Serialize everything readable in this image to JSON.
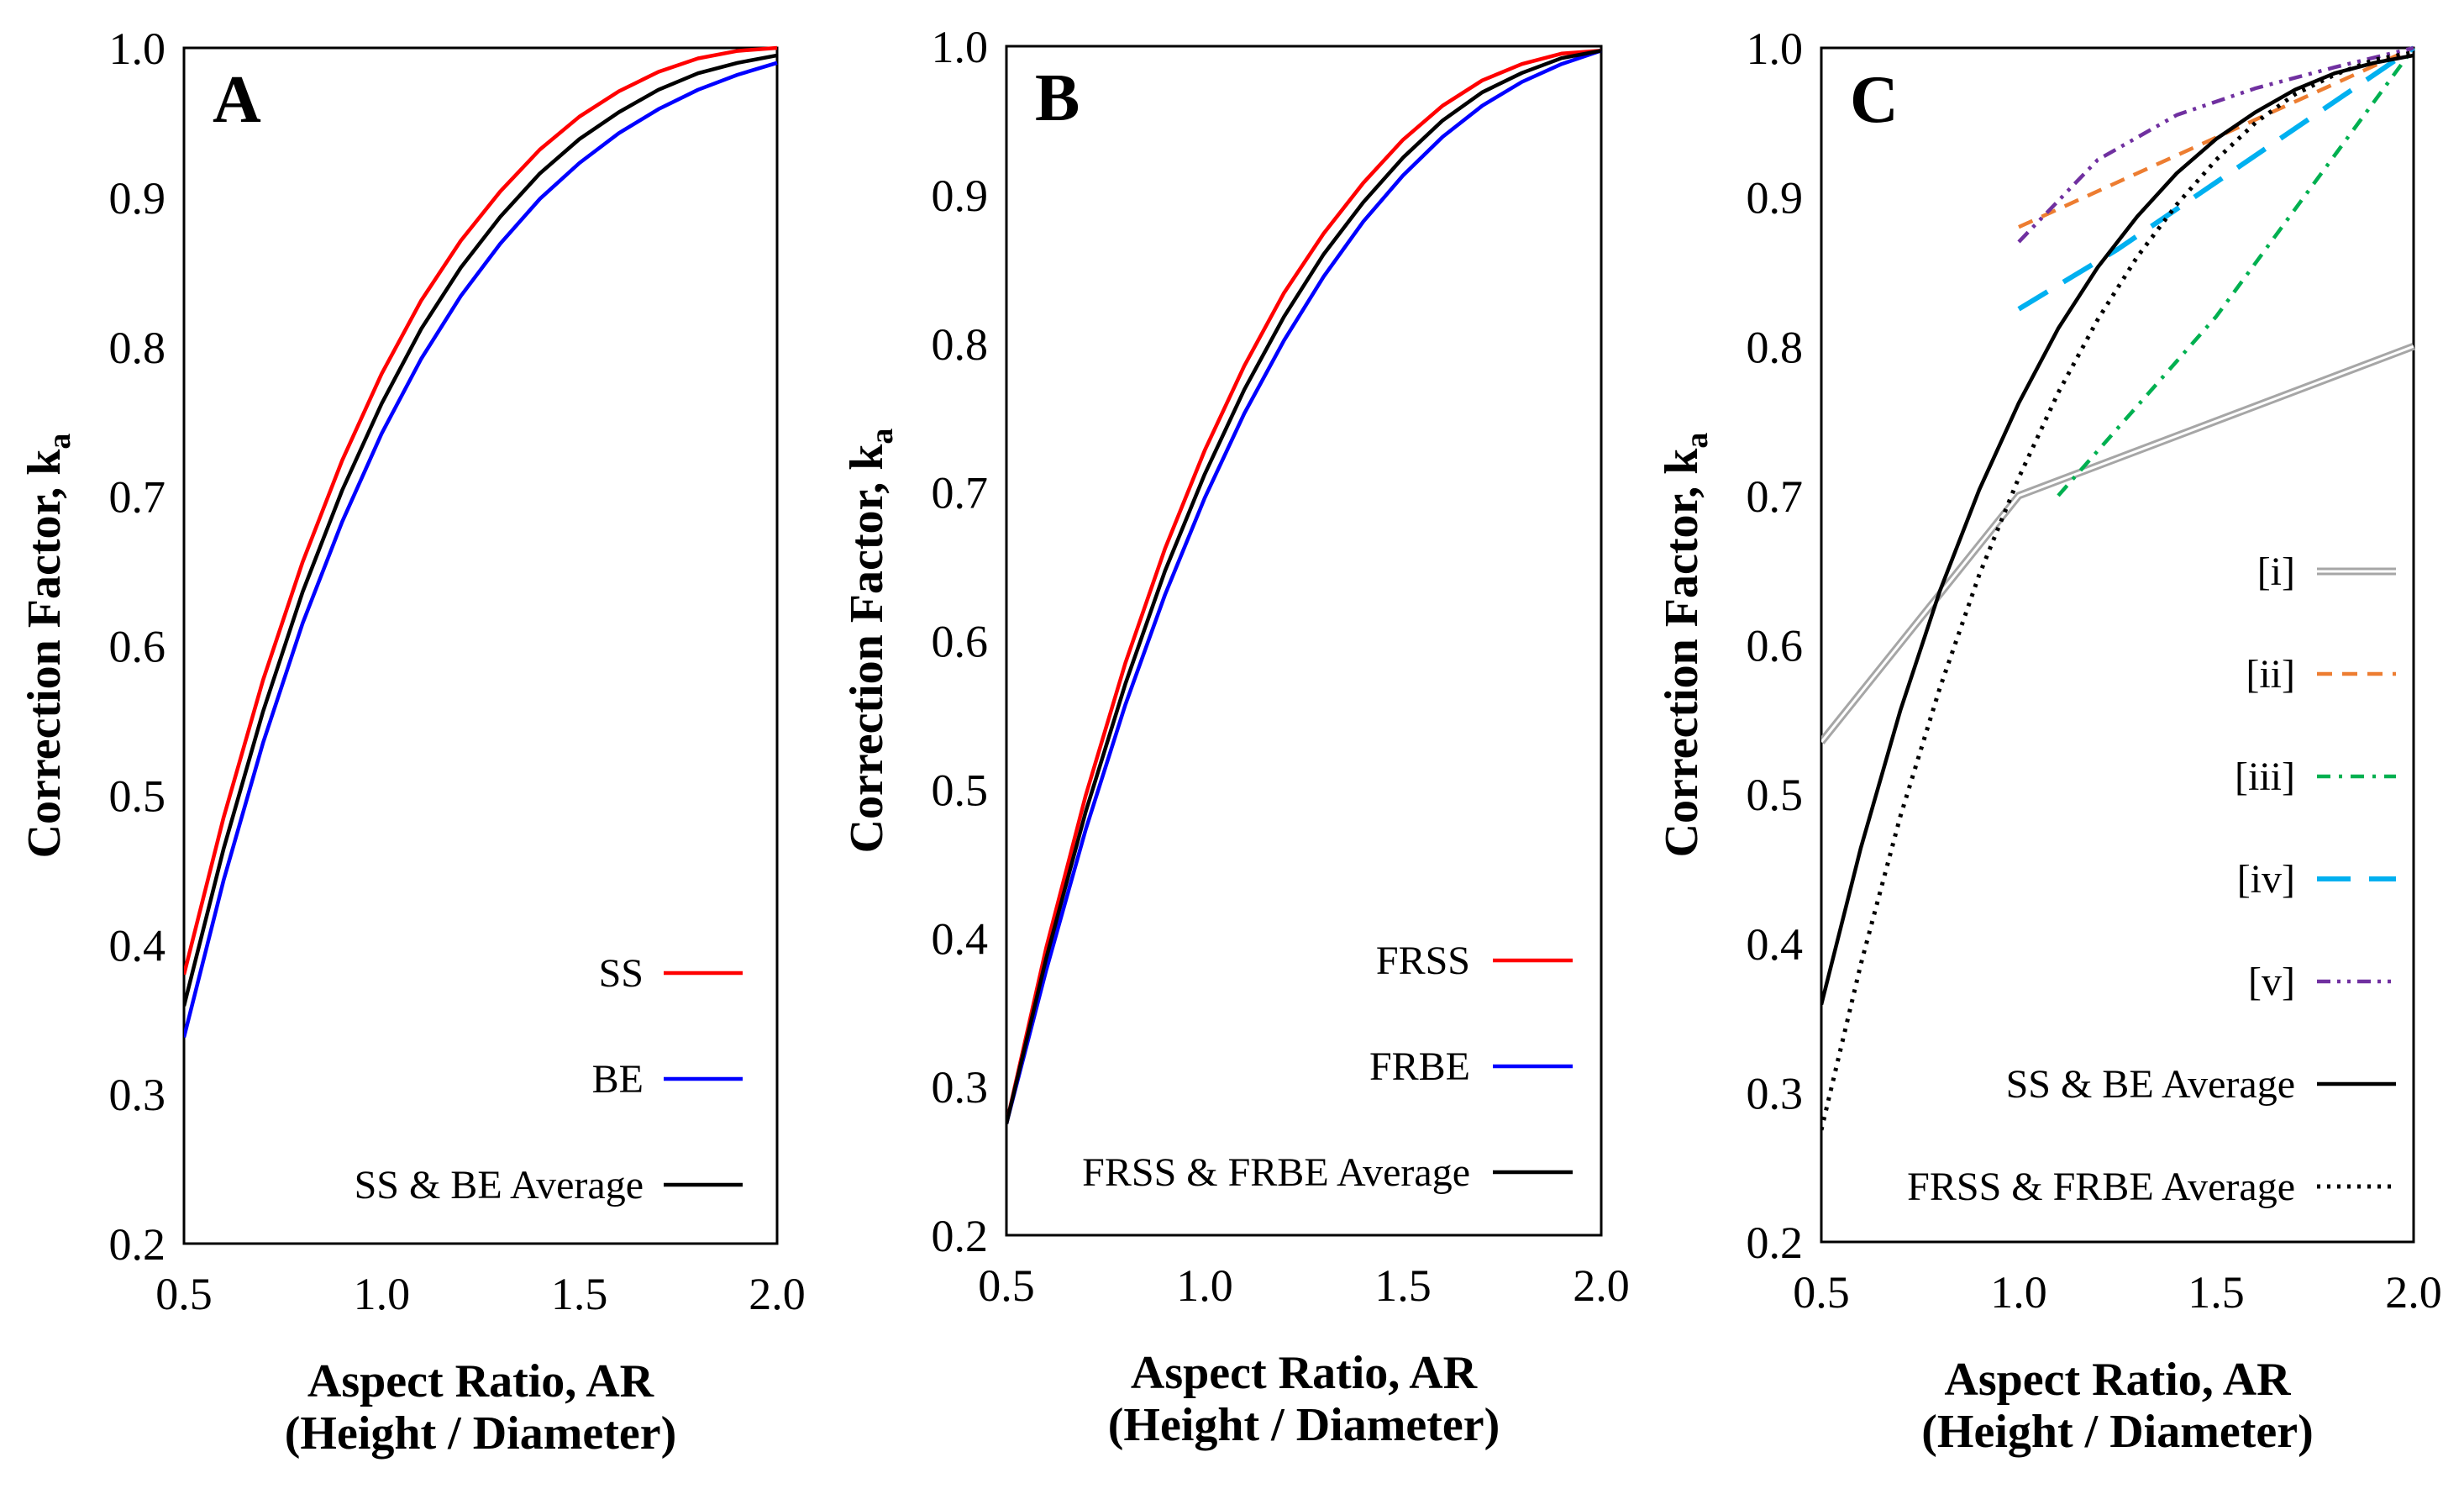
{
  "charts": [
    {
      "panel": "A",
      "chart_data": {
        "type": "line",
        "xlim": [
          0.5,
          2.0
        ],
        "ylim": [
          0.2,
          1.0
        ],
        "x_ticks": [
          "0.5",
          "1.0",
          "1.5",
          "2.0"
        ],
        "y_ticks": [
          "0.2",
          "0.3",
          "0.4",
          "0.5",
          "0.6",
          "0.7",
          "0.8",
          "0.9",
          "1.0"
        ],
        "xlabel": [
          "Aspect Ratio, AR",
          "(Height / Diameter)"
        ],
        "ylabel": "Correction Factor, k",
        "ylabel_sub": "a",
        "legend_position": "bottom-right",
        "series": [
          {
            "name": "SS",
            "color": "#ff0000",
            "style": "solid",
            "x": [
              0.5,
              0.6,
              0.7,
              0.8,
              0.9,
              1.0,
              1.1,
              1.2,
              1.3,
              1.4,
              1.5,
              1.6,
              1.7,
              1.8,
              1.9,
              2.0
            ],
            "y": [
              0.38,
              0.485,
              0.577,
              0.656,
              0.724,
              0.782,
              0.831,
              0.871,
              0.904,
              0.932,
              0.954,
              0.971,
              0.984,
              0.993,
              0.998,
              1.0
            ]
          },
          {
            "name": "BE",
            "color": "#0000ff",
            "style": "solid",
            "x": [
              0.5,
              0.6,
              0.7,
              0.8,
              0.9,
              1.0,
              1.1,
              1.2,
              1.3,
              1.4,
              1.5,
              1.6,
              1.7,
              1.8,
              1.9,
              2.0
            ],
            "y": [
              0.338,
              0.443,
              0.535,
              0.615,
              0.683,
              0.742,
              0.792,
              0.834,
              0.869,
              0.899,
              0.923,
              0.943,
              0.959,
              0.972,
              0.982,
              0.99
            ]
          },
          {
            "name": "SS & BE Average",
            "color": "#000000",
            "style": "solid",
            "x": [
              0.5,
              0.6,
              0.7,
              0.8,
              0.9,
              1.0,
              1.1,
              1.2,
              1.3,
              1.4,
              1.5,
              1.6,
              1.7,
              1.8,
              1.9,
              2.0
            ],
            "y": [
              0.359,
              0.464,
              0.556,
              0.636,
              0.704,
              0.762,
              0.812,
              0.853,
              0.887,
              0.916,
              0.939,
              0.957,
              0.972,
              0.983,
              0.99,
              0.995
            ]
          }
        ]
      }
    },
    {
      "panel": "B",
      "chart_data": {
        "type": "line",
        "xlim": [
          0.5,
          2.0
        ],
        "ylim": [
          0.2,
          1.0
        ],
        "x_ticks": [
          "0.5",
          "1.0",
          "1.5",
          "2.0"
        ],
        "y_ticks": [
          "0.2",
          "0.3",
          "0.4",
          "0.5",
          "0.6",
          "0.7",
          "0.8",
          "0.9",
          "1.0"
        ],
        "xlabel": [
          "Aspect Ratio, AR",
          "(Height / Diameter)"
        ],
        "ylabel": "Correction Factor, k",
        "ylabel_sub": "a",
        "legend_position": "bottom-right",
        "series": [
          {
            "name": "FRSS",
            "color": "#ff0000",
            "style": "solid",
            "x": [
              0.5,
              0.6,
              0.7,
              0.8,
              0.9,
              1.0,
              1.1,
              1.2,
              1.3,
              1.4,
              1.5,
              1.6,
              1.7,
              1.8,
              1.9,
              2.0
            ],
            "y": [
              0.275,
              0.393,
              0.496,
              0.585,
              0.662,
              0.728,
              0.785,
              0.834,
              0.874,
              0.908,
              0.937,
              0.96,
              0.977,
              0.988,
              0.995,
              0.997
            ]
          },
          {
            "name": "FRBE",
            "color": "#0000ff",
            "style": "solid",
            "x": [
              0.5,
              0.6,
              0.7,
              0.8,
              0.9,
              1.0,
              1.1,
              1.2,
              1.3,
              1.4,
              1.5,
              1.6,
              1.7,
              1.8,
              1.9,
              2.0
            ],
            "y": [
              0.275,
              0.378,
              0.473,
              0.557,
              0.631,
              0.696,
              0.753,
              0.802,
              0.845,
              0.882,
              0.913,
              0.939,
              0.96,
              0.976,
              0.988,
              0.997
            ]
          },
          {
            "name": "FRSS & FRBE Average",
            "color": "#000000",
            "style": "solid",
            "x": [
              0.5,
              0.6,
              0.7,
              0.8,
              0.9,
              1.0,
              1.1,
              1.2,
              1.3,
              1.4,
              1.5,
              1.6,
              1.7,
              1.8,
              1.9,
              2.0
            ],
            "y": [
              0.275,
              0.386,
              0.485,
              0.571,
              0.647,
              0.712,
              0.769,
              0.818,
              0.86,
              0.895,
              0.925,
              0.95,
              0.969,
              0.982,
              0.992,
              0.997
            ]
          }
        ]
      }
    },
    {
      "panel": "C",
      "chart_data": {
        "type": "line",
        "xlim": [
          0.5,
          2.0
        ],
        "ylim": [
          0.2,
          1.0
        ],
        "x_ticks": [
          "0.5",
          "1.0",
          "1.5",
          "2.0"
        ],
        "y_ticks": [
          "0.2",
          "0.3",
          "0.4",
          "0.5",
          "0.6",
          "0.7",
          "0.8",
          "0.9",
          "1.0"
        ],
        "xlabel": [
          "Aspect Ratio, AR",
          "(Height / Diameter)"
        ],
        "ylabel": "Correction Factor, k",
        "ylabel_sub": "a",
        "legend_position": "right",
        "series": [
          {
            "name": "[i]",
            "color": "#a6a6a6",
            "style": "double",
            "x": [
              0.5,
              1.0,
              2.0
            ],
            "y": [
              0.535,
              0.7,
              0.8
            ]
          },
          {
            "name": "[ii]",
            "color": "#ed7d31",
            "style": "dashed",
            "x": [
              1.0,
              1.5,
              2.0
            ],
            "y": [
              0.88,
              0.94,
              1.0
            ]
          },
          {
            "name": "[iii]",
            "color": "#00b050",
            "style": "dashdot",
            "x": [
              1.1,
              1.5,
              2.0
            ],
            "y": [
              0.7,
              0.82,
              1.0
            ]
          },
          {
            "name": "[iv]",
            "color": "#00b0f0",
            "style": "longdash",
            "x": [
              1.0,
              1.25,
              1.5,
              1.75,
              2.0
            ],
            "y": [
              0.825,
              0.865,
              0.91,
              0.955,
              1.0
            ]
          },
          {
            "name": "[v]",
            "color": "#7030a0",
            "style": "dashdotdot",
            "x": [
              1.0,
              1.2,
              1.4,
              1.6,
              1.8,
              2.0
            ],
            "y": [
              0.87,
              0.925,
              0.955,
              0.973,
              0.987,
              1.0
            ]
          },
          {
            "name": "SS & BE Average",
            "color": "#000000",
            "style": "solid",
            "x": [
              0.5,
              0.6,
              0.7,
              0.8,
              0.9,
              1.0,
              1.1,
              1.2,
              1.3,
              1.4,
              1.5,
              1.6,
              1.7,
              1.8,
              1.9,
              2.0
            ],
            "y": [
              0.359,
              0.464,
              0.556,
              0.636,
              0.704,
              0.762,
              0.812,
              0.853,
              0.887,
              0.916,
              0.939,
              0.957,
              0.972,
              0.983,
              0.99,
              0.995
            ]
          },
          {
            "name": "FRSS & FRBE Average",
            "color": "#000000",
            "style": "dotted",
            "x": [
              0.5,
              0.6,
              0.7,
              0.8,
              0.9,
              1.0,
              1.1,
              1.2,
              1.3,
              1.4,
              1.5,
              1.6,
              1.7,
              1.8,
              1.9,
              2.0
            ],
            "y": [
              0.275,
              0.386,
              0.485,
              0.571,
              0.647,
              0.712,
              0.769,
              0.818,
              0.86,
              0.895,
              0.925,
              0.95,
              0.969,
              0.982,
              0.992,
              0.997
            ]
          }
        ]
      }
    }
  ]
}
